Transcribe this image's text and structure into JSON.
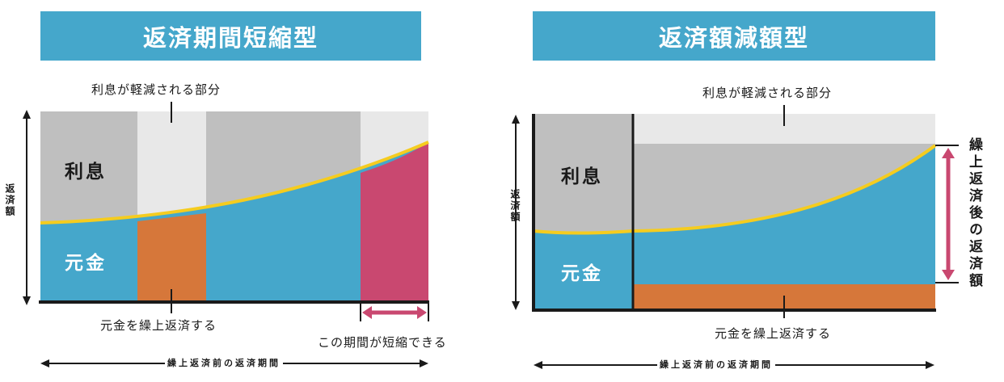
{
  "left": {
    "title": "返済期間短縮型",
    "interest_reduced_label": "利息が軽減される部分",
    "interest_label": "利息",
    "principal_label": "元金",
    "y_axis_label": "返済額",
    "prepay_label": "元金を繰上返済する",
    "shorten_label": "この期間が短縮できる",
    "x_axis_label": "繰上返済前の返済期間"
  },
  "right": {
    "title": "返済額減額型",
    "interest_reduced_label": "利息が軽減される部分",
    "interest_label": "利息",
    "principal_label": "元金",
    "y_axis_label": "返済額",
    "prepay_label": "元金を繰上返済する",
    "after_payment_label": "繰上返済後の返済額",
    "x_axis_label": "繰上返済前の返済期間"
  },
  "colors": {
    "banner": "#45a7cb",
    "principal": "#45a7cb",
    "interest": "#bfbfbf",
    "reduced_interest": "#e8e8e8",
    "prepaid_principal": "#d6773a",
    "shortened_period": "#c94870",
    "curve": "#f5cc1f",
    "arrow": "#c94870"
  }
}
